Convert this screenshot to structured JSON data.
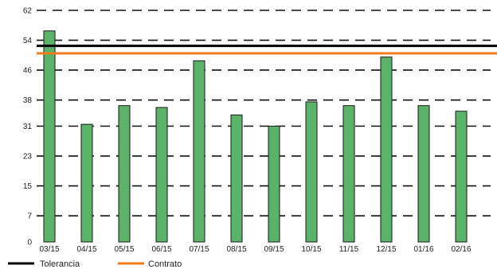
{
  "chart_data": {
    "type": "bar",
    "categories": [
      "03/15",
      "04/15",
      "05/15",
      "06/15",
      "07/15",
      "08/15",
      "09/15",
      "10/15",
      "11/15",
      "12/15",
      "01/16",
      "02/16"
    ],
    "values": [
      56.5,
      31.5,
      36.5,
      36,
      48.5,
      34,
      31,
      37.5,
      36.5,
      49.5,
      36.5,
      35
    ],
    "ylim": [
      0,
      62
    ],
    "yticks": [
      0,
      7,
      15,
      23,
      31,
      38,
      46,
      54,
      62
    ],
    "grid": "horizontal-dashed",
    "bar_color": "#5bb36a",
    "reference_lines": [
      {
        "name": "Tolerancia",
        "value": 52.5,
        "color": "#000000"
      },
      {
        "name": "Contrato",
        "value": 50.5,
        "color": "#f07d1a"
      }
    ],
    "legend": {
      "position": "bottom-left",
      "entries": [
        "Tolerancia",
        "Contrato"
      ]
    }
  }
}
